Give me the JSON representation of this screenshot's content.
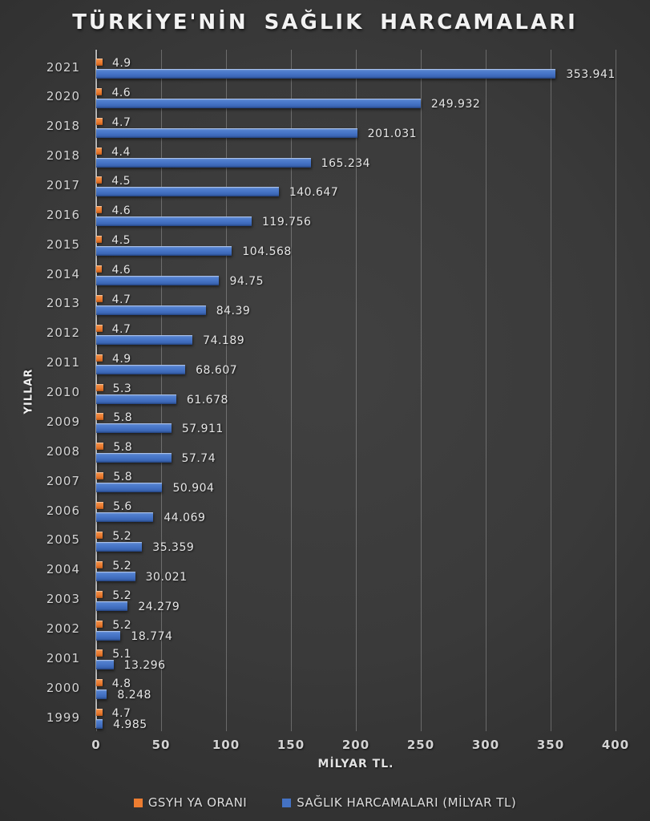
{
  "title": "TÜRKİYE'NİN SAĞLIK HARCAMALARI",
  "colors": {
    "background_center": "#3f3f3f",
    "background_edge": "#232323",
    "bar_blue": "#4472C4",
    "bar_orange": "#ED7D31",
    "text_light": "#e6e6e6",
    "gridline": "rgba(255,255,255,0.26)"
  },
  "chart_data": {
    "type": "bar",
    "orientation": "horizontal",
    "title": "TÜRKİYE'NİN SAĞLIK HARCAMALARI",
    "categories": [
      "2021",
      "2020",
      "2018",
      "2018",
      "2017",
      "2016",
      "2015",
      "2014",
      "2013",
      "2012",
      "2011",
      "2010",
      "2009",
      "2008",
      "2007",
      "2006",
      "2005",
      "2004",
      "2003",
      "2002",
      "2001",
      "2000",
      "1999"
    ],
    "series": [
      {
        "name": "GSYH YA ORANI",
        "color": "#ED7D31",
        "values": [
          4.9,
          4.6,
          4.7,
          4.4,
          4.5,
          4.6,
          4.5,
          4.6,
          4.7,
          4.7,
          4.9,
          5.3,
          5.8,
          5.8,
          5.8,
          5.6,
          5.2,
          5.2,
          5.2,
          5.2,
          5.1,
          4.8,
          4.7
        ]
      },
      {
        "name": "SAĞLIK HARCAMALARI (MİLYAR TL)",
        "color": "#4472C4",
        "values": [
          353.941,
          249.932,
          201.031,
          165.234,
          140.647,
          119.756,
          104.568,
          94.75,
          84.39,
          74.189,
          68.607,
          61.678,
          57.911,
          57.74,
          50.904,
          44.069,
          35.359,
          30.021,
          24.279,
          18.774,
          13.296,
          8.248,
          4.985
        ]
      }
    ],
    "xlabel": "MİLYAR TL.",
    "ylabel": "YILLAR",
    "xlim": [
      0,
      400
    ],
    "xticks": [
      0,
      50,
      100,
      150,
      200,
      250,
      300,
      350,
      400
    ],
    "grid": "vertical",
    "legend_position": "bottom",
    "value_labels": "shown"
  }
}
